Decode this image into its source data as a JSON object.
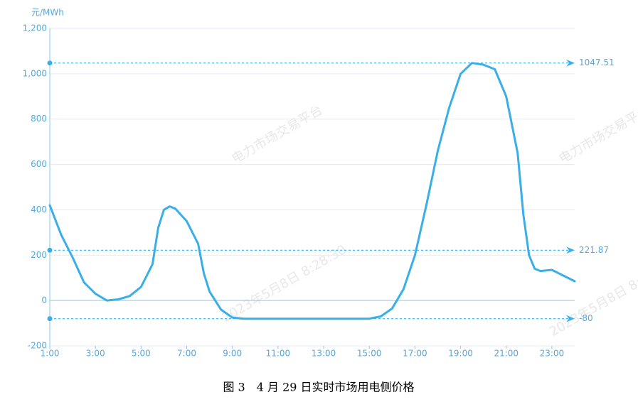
{
  "chart_data": {
    "type": "line",
    "caption": "图 3　4 月 29 日实时市场用电侧价格",
    "y_unit": "元/MWh",
    "watermarks": [
      "电力市场交易平台",
      "2023年5月8日 8:28:30"
    ],
    "x": [
      1,
      1.5,
      2,
      2.5,
      3,
      3.5,
      4,
      4.5,
      5,
      5.5,
      5.75,
      6,
      6.25,
      6.5,
      7,
      7.5,
      7.75,
      8,
      8.5,
      9,
      9.5,
      10,
      11,
      12,
      13,
      14,
      15,
      15.5,
      16,
      16.5,
      17,
      17.5,
      18,
      18.5,
      19,
      19.5,
      20,
      20.5,
      21,
      21.5,
      21.75,
      22,
      22.25,
      22.5,
      23,
      23.5,
      24
    ],
    "values": [
      420,
      290,
      190,
      80,
      30,
      0,
      5,
      20,
      60,
      160,
      320,
      400,
      415,
      405,
      350,
      250,
      120,
      40,
      -40,
      -75,
      -80,
      -80,
      -80,
      -80,
      -80,
      -80,
      -80,
      -70,
      -35,
      50,
      200,
      420,
      660,
      850,
      1000,
      1047.51,
      1040,
      1020,
      900,
      650,
      380,
      200,
      140,
      130,
      135,
      110,
      85
    ],
    "color": "#3aaee8",
    "mark_lines": [
      1047.51,
      221.87,
      -80
    ],
    "xlim": [
      1,
      24
    ],
    "xticks": [
      {
        "value": 1,
        "label": "1:00"
      },
      {
        "value": 3,
        "label": "3:00"
      },
      {
        "value": 5,
        "label": "5:00"
      },
      {
        "value": 7,
        "label": "7:00"
      },
      {
        "value": 9,
        "label": "9:00"
      },
      {
        "value": 11,
        "label": "11:00"
      },
      {
        "value": 13,
        "label": "13:00"
      },
      {
        "value": 15,
        "label": "15:00"
      },
      {
        "value": 17,
        "label": "17:00"
      },
      {
        "value": 19,
        "label": "19:00"
      },
      {
        "value": 21,
        "label": "21:00"
      },
      {
        "value": 23,
        "label": "23:00"
      }
    ],
    "ylim": [
      -200,
      1200
    ],
    "yticks": [
      -200,
      0,
      200,
      400,
      600,
      800,
      {
        "value": 1000,
        "label": "1,000"
      },
      {
        "value": 1200,
        "label": "1,200"
      }
    ],
    "grid": true
  }
}
